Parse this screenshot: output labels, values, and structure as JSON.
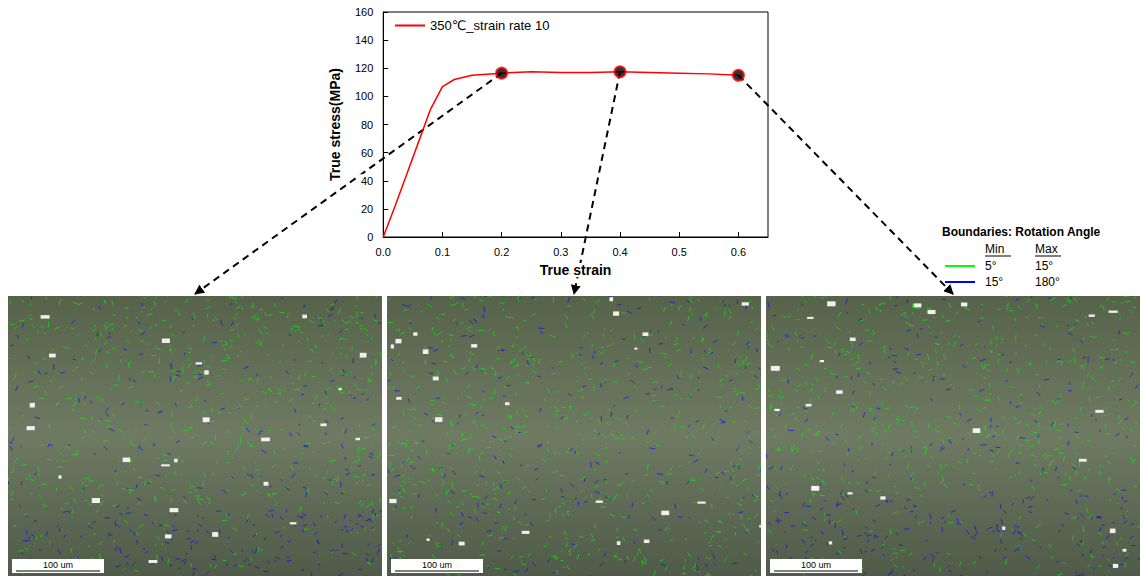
{
  "chart_data": {
    "type": "line",
    "x": [
      0,
      0.02,
      0.04,
      0.06,
      0.08,
      0.1,
      0.12,
      0.15,
      0.2,
      0.25,
      0.3,
      0.35,
      0.4,
      0.45,
      0.5,
      0.55,
      0.6
    ],
    "series": [
      {
        "name": "350℃_strain rate 10",
        "color": "#ff0000",
        "line_style": "solid",
        "values": [
          0,
          22,
          45,
          68,
          91,
          107,
          112,
          115,
          116.5,
          117.5,
          117,
          117,
          117.5,
          117,
          116.5,
          116,
          115
        ]
      }
    ],
    "highlight_points": {
      "x": [
        0.2,
        0.4,
        0.6
      ],
      "values": [
        116.5,
        117.5,
        115
      ],
      "color": "#000000",
      "marker": "circle"
    },
    "x_label": "True strain",
    "y_label": "True stress(MPa)",
    "xlim": [
      0,
      0.65
    ],
    "xticks": [
      {
        "value": 0,
        "label": "0.0"
      },
      0.1,
      0.2,
      0.3,
      0.4,
      0.5,
      0.6
    ],
    "ylim": [
      0,
      160
    ],
    "yticks": [
      0,
      20,
      40,
      60,
      80,
      100,
      120,
      140,
      160
    ],
    "legend": "upper left",
    "grid": false
  },
  "micrographs": [
    {
      "scale_bar": "100 um"
    },
    {
      "scale_bar": "100 um"
    },
    {
      "scale_bar": "100 um"
    }
  ],
  "boundary_legend": {
    "title": "Boundaries: Rotation Angle",
    "columns": [
      "Min",
      "Max"
    ],
    "rows": [
      {
        "color": "#00ff00",
        "min": "5°",
        "max": "15°"
      },
      {
        "color": "#0000ff",
        "min": "15°",
        "max": "180°"
      }
    ]
  }
}
